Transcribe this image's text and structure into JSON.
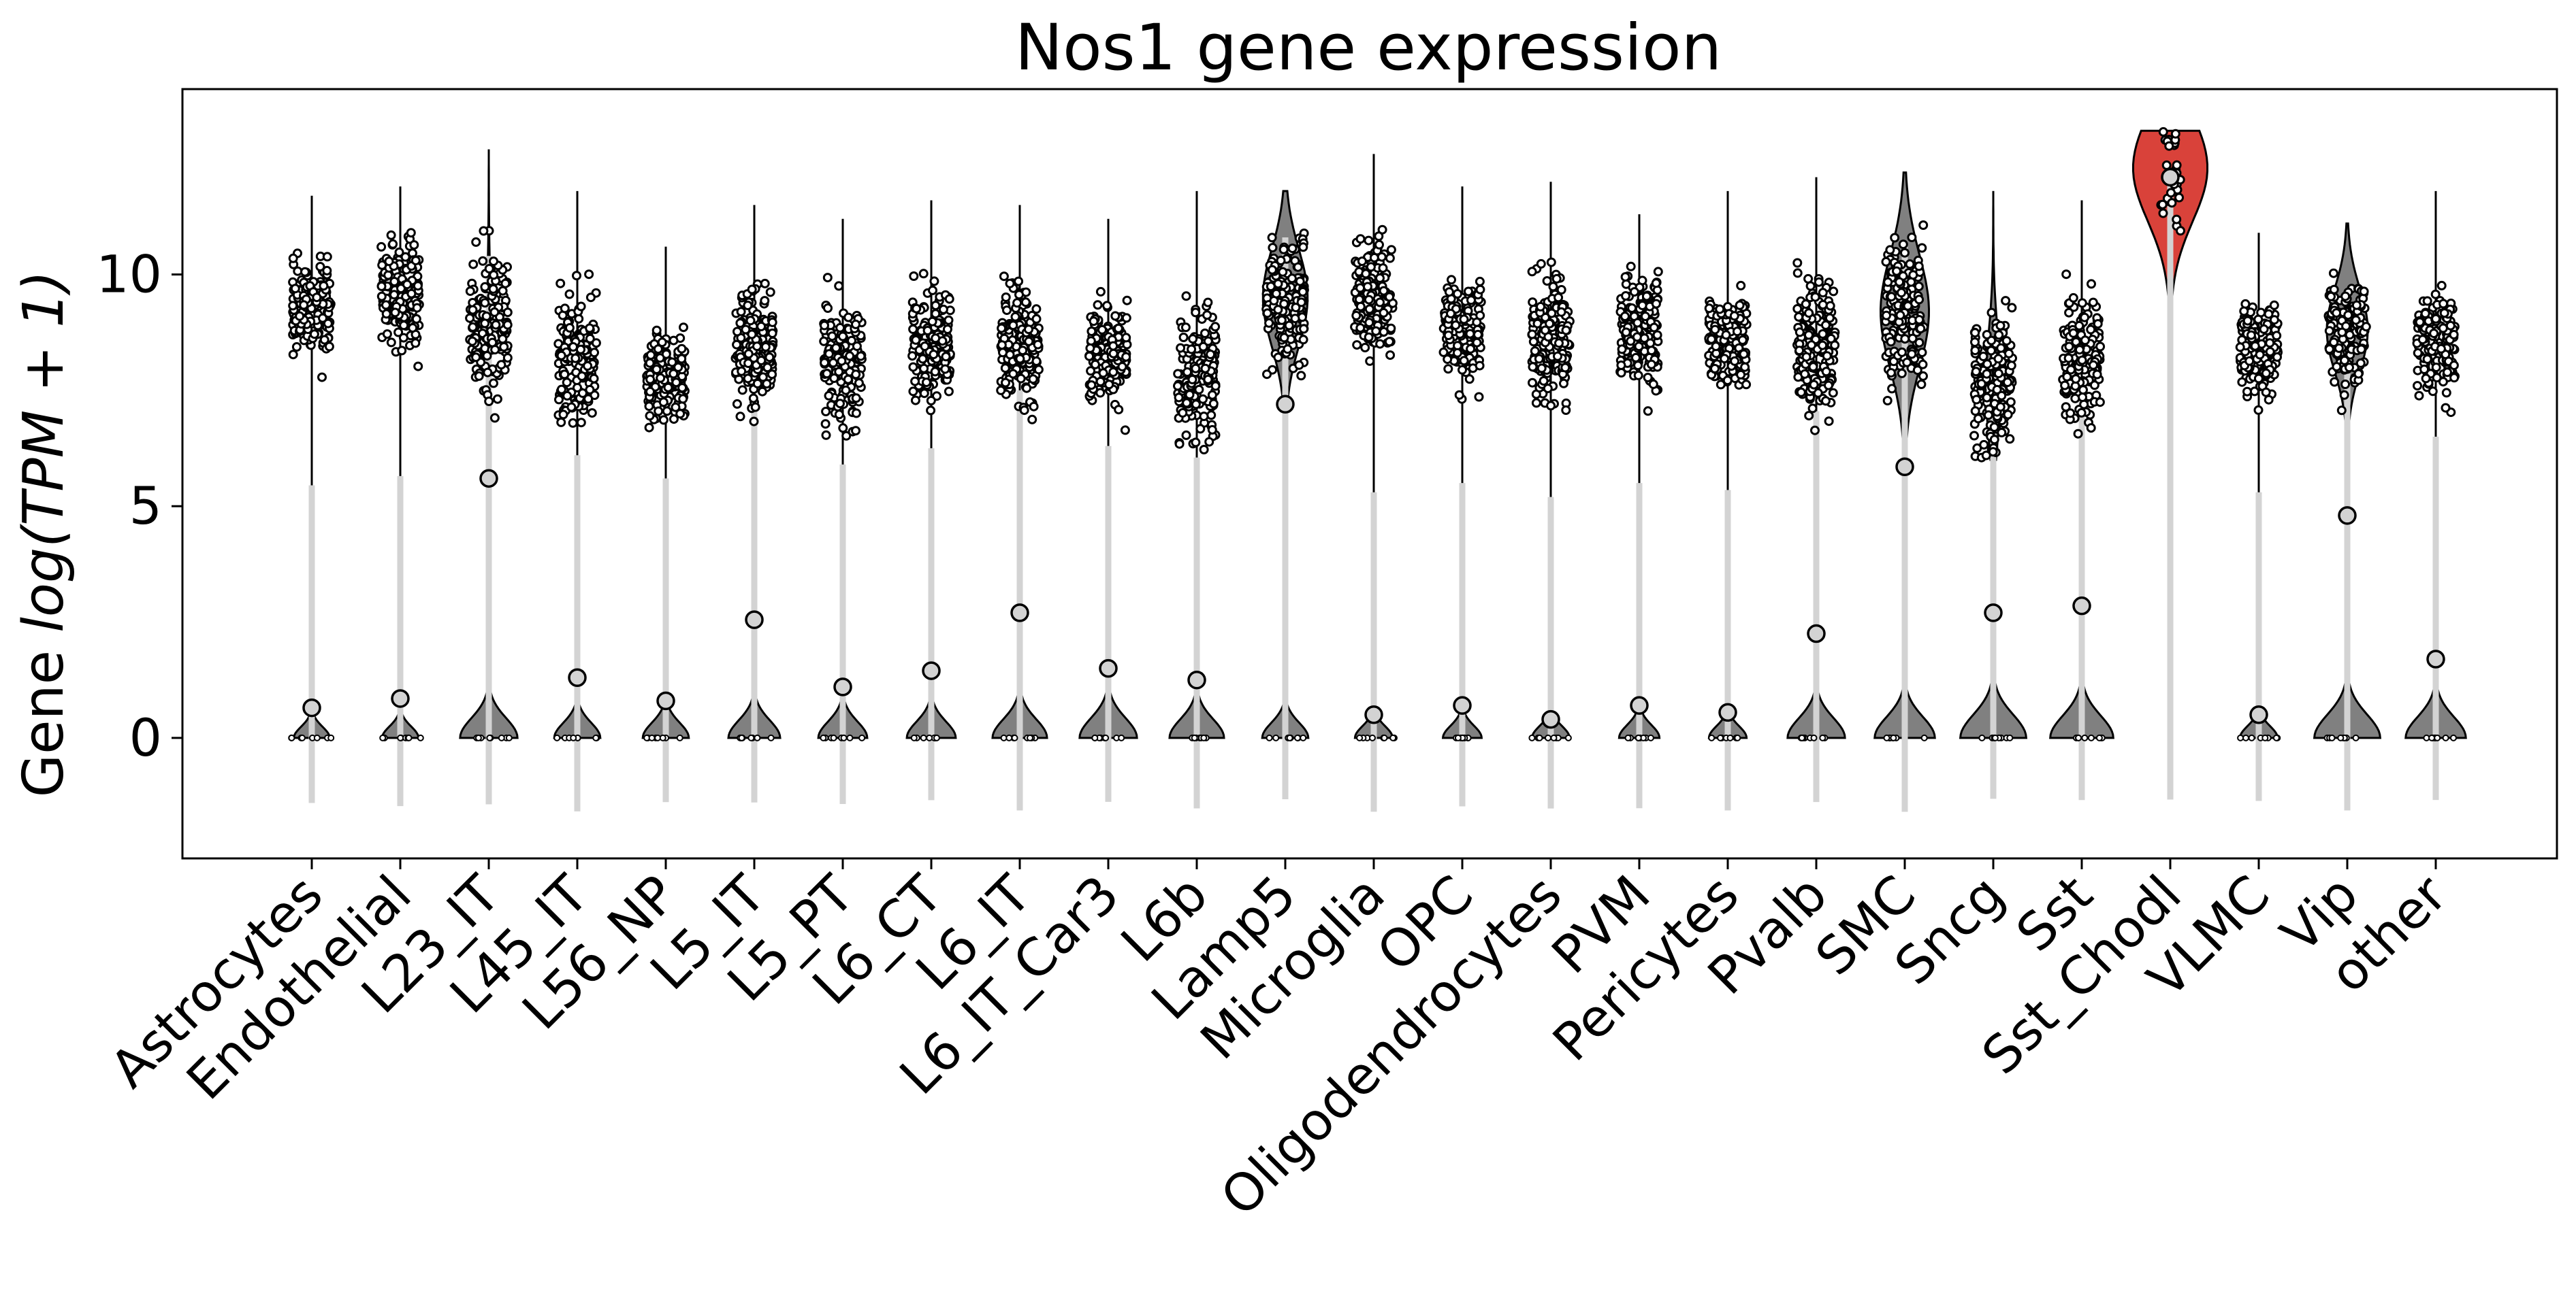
{
  "chart_data": {
    "type": "violin",
    "title": "Nos1 gene expression",
    "ylabel_prefix": "Gene ",
    "ylabel_math": "log(TPM + 1)",
    "xlabel": "",
    "ylim": [
      -2.6,
      14
    ],
    "yticks": [
      0,
      5,
      10
    ],
    "grid": false,
    "highlight_color": "#d9423a",
    "violin_color": "#808080",
    "categories": [
      {
        "name": "Astrocytes",
        "median": 0.65,
        "main_low": 7.5,
        "main_high": 11.7,
        "zero_frac": 0.07,
        "peak": 9.3,
        "main_width": 0.0,
        "top": 11.7
      },
      {
        "name": "Endothelial",
        "median": 0.85,
        "main_low": 7.3,
        "main_high": 11.9,
        "zero_frac": 0.08,
        "peak": 9.6,
        "main_width": 0.0,
        "top": 11.9
      },
      {
        "name": "L23_IT",
        "median": 5.6,
        "main_low": 6.4,
        "main_high": 12.7,
        "zero_frac": 0.45,
        "peak": 8.8,
        "main_width": 0.05,
        "top": 12.7
      },
      {
        "name": "L45_IT",
        "median": 1.3,
        "main_low": 6.3,
        "main_high": 11.8,
        "zero_frac": 0.25,
        "peak": 8.2,
        "main_width": 0.0,
        "top": 11.8
      },
      {
        "name": "L56_NP",
        "median": 0.8,
        "main_low": 6.5,
        "main_high": 10.6,
        "zero_frac": 0.25,
        "peak": 7.8,
        "main_width": 0.0,
        "top": 10.6
      },
      {
        "name": "L5_IT",
        "median": 2.55,
        "main_low": 6.3,
        "main_high": 11.5,
        "zero_frac": 0.35,
        "peak": 8.5,
        "main_width": 0.0,
        "top": 11.5
      },
      {
        "name": "L5_PT",
        "median": 1.1,
        "main_low": 6.0,
        "main_high": 11.2,
        "zero_frac": 0.3,
        "peak": 8.0,
        "main_width": 0.0,
        "top": 11.2
      },
      {
        "name": "L6_CT",
        "median": 1.45,
        "main_low": 6.5,
        "main_high": 11.6,
        "zero_frac": 0.3,
        "peak": 8.5,
        "main_width": 0.0,
        "top": 11.6
      },
      {
        "name": "L6_IT",
        "median": 2.7,
        "main_low": 6.3,
        "main_high": 11.5,
        "zero_frac": 0.4,
        "peak": 8.5,
        "main_width": 0.0,
        "top": 11.5
      },
      {
        "name": "L6_IT_Car3",
        "median": 1.5,
        "main_low": 6.5,
        "main_high": 11.2,
        "zero_frac": 0.45,
        "peak": 8.3,
        "main_width": 0.0,
        "top": 11.2
      },
      {
        "name": "L6b",
        "median": 1.25,
        "main_low": 6.2,
        "main_high": 11.8,
        "zero_frac": 0.4,
        "peak": 7.8,
        "main_width": 0.0,
        "top": 11.8
      },
      {
        "name": "Lamp5",
        "median": 7.2,
        "main_low": 6.5,
        "main_high": 11.8,
        "zero_frac": 0.25,
        "peak": 9.5,
        "main_width": 0.6,
        "top": 11.8
      },
      {
        "name": "Microglia",
        "median": 0.5,
        "main_low": 7.5,
        "main_high": 12.6,
        "zero_frac": 0.1,
        "peak": 9.5,
        "main_width": 0.0,
        "top": 12.6
      },
      {
        "name": "OPC",
        "median": 0.7,
        "main_low": 7.3,
        "main_high": 11.9,
        "zero_frac": 0.12,
        "peak": 8.8,
        "main_width": 0.0,
        "top": 11.9
      },
      {
        "name": "Oligodendrocytes",
        "median": 0.4,
        "main_low": 6.5,
        "main_high": 12.0,
        "zero_frac": 0.1,
        "peak": 8.6,
        "main_width": 0.0,
        "top": 12.0
      },
      {
        "name": "PVM",
        "median": 0.7,
        "main_low": 6.4,
        "main_high": 11.3,
        "zero_frac": 0.15,
        "peak": 8.8,
        "main_width": 0.0,
        "top": 11.3
      },
      {
        "name": "Pericytes",
        "median": 0.55,
        "main_low": 7.6,
        "main_high": 11.8,
        "zero_frac": 0.1,
        "peak": 8.5,
        "main_width": 0.0,
        "top": 11.8
      },
      {
        "name": "Pvalb",
        "median": 2.25,
        "main_low": 6.2,
        "main_high": 12.1,
        "zero_frac": 0.45,
        "peak": 8.5,
        "main_width": 0.0,
        "top": 12.1
      },
      {
        "name": "SMC",
        "median": 5.85,
        "main_low": 6.0,
        "main_high": 12.2,
        "zero_frac": 0.5,
        "peak": 9.2,
        "main_width": 0.65,
        "top": 12.2
      },
      {
        "name": "Sncg",
        "median": 2.7,
        "main_low": 6.0,
        "main_high": 11.8,
        "zero_frac": 0.6,
        "peak": 7.6,
        "main_width": 0.2,
        "top": 11.8
      },
      {
        "name": "Sst",
        "median": 2.85,
        "main_low": 6.3,
        "main_high": 11.6,
        "zero_frac": 0.55,
        "peak": 8.2,
        "main_width": 0.0,
        "top": 11.6
      },
      {
        "name": "Sst_Chodl",
        "median": 12.1,
        "main_low": 7.3,
        "main_high": 13.1,
        "zero_frac": 0.0,
        "peak": 12.3,
        "main_width": 1.0,
        "top": 13.1,
        "highlight": true
      },
      {
        "name": "VLMC",
        "median": 0.5,
        "main_low": 6.8,
        "main_high": 10.9,
        "zero_frac": 0.1,
        "peak": 8.4,
        "main_width": 0.0,
        "top": 10.9
      },
      {
        "name": "Vip",
        "median": 4.8,
        "main_low": 6.5,
        "main_high": 11.1,
        "zero_frac": 0.6,
        "peak": 8.8,
        "main_width": 0.55,
        "top": 11.1
      },
      {
        "name": "other",
        "median": 1.7,
        "main_low": 6.5,
        "main_high": 11.8,
        "zero_frac": 0.5,
        "peak": 8.5,
        "main_width": 0.0,
        "top": 11.8
      }
    ]
  }
}
